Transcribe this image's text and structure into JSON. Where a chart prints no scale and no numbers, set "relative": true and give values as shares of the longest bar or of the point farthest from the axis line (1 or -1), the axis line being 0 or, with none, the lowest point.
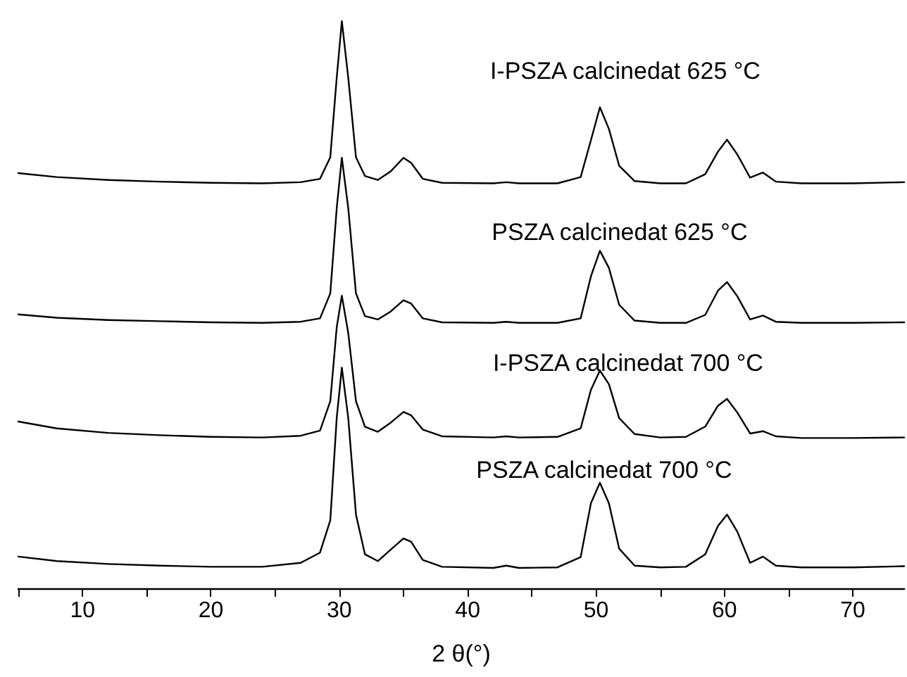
{
  "chart_data": {
    "type": "line",
    "relative": true,
    "xlabel": "2 θ(°)",
    "xlim": [
      5,
      74
    ],
    "xticks": [
      {
        "value": 5,
        "label": null
      },
      10,
      {
        "value": 15,
        "label": null
      },
      20,
      {
        "value": 25,
        "label": null
      },
      30,
      {
        "value": 35,
        "label": null
      },
      40,
      {
        "value": 45,
        "label": null
      },
      50,
      {
        "value": 55,
        "label": null
      },
      60,
      {
        "value": 65,
        "label": null
      },
      70
    ],
    "x": [
      5,
      8,
      12,
      16,
      20,
      24,
      27,
      28.5,
      29.3,
      29.8,
      30.2,
      30.7,
      31.3,
      32,
      33,
      34,
      35,
      35.6,
      36.5,
      38,
      42,
      43,
      44,
      47,
      48.8,
      49.6,
      50.3,
      51,
      51.8,
      53,
      55,
      57,
      58.5,
      59.5,
      60.2,
      61,
      62,
      63,
      64,
      66,
      70,
      74
    ],
    "legend": false,
    "grid": false,
    "marker": "none",
    "line_style": "solid",
    "tick_labels": "x",
    "series": [
      {
        "name": "I-PSZA calcinedat 625 °C",
        "color": "#000000",
        "values": [
          0.732,
          0.725,
          0.72,
          0.717,
          0.715,
          0.714,
          0.716,
          0.722,
          0.76,
          0.9,
          1.0,
          0.9,
          0.76,
          0.727,
          0.72,
          0.735,
          0.759,
          0.75,
          0.722,
          0.715,
          0.714,
          0.716,
          0.714,
          0.714,
          0.725,
          0.79,
          0.848,
          0.81,
          0.745,
          0.718,
          0.714,
          0.714,
          0.73,
          0.77,
          0.791,
          0.765,
          0.724,
          0.733,
          0.717,
          0.714,
          0.714,
          0.716
        ]
      },
      {
        "name": "PSZA calcinedat 625 °C",
        "color": "#000000",
        "values": [
          0.483,
          0.477,
          0.473,
          0.471,
          0.469,
          0.468,
          0.47,
          0.476,
          0.52,
          0.67,
          0.759,
          0.67,
          0.52,
          0.48,
          0.474,
          0.488,
          0.508,
          0.502,
          0.476,
          0.469,
          0.468,
          0.47,
          0.468,
          0.468,
          0.476,
          0.55,
          0.595,
          0.565,
          0.5,
          0.472,
          0.468,
          0.468,
          0.482,
          0.525,
          0.54,
          0.515,
          0.474,
          0.481,
          0.47,
          0.468,
          0.468,
          0.469
        ]
      },
      {
        "name": "I-PSZA calcinedat 700 °C",
        "color": "#000000",
        "values": [
          0.294,
          0.282,
          0.274,
          0.27,
          0.267,
          0.266,
          0.269,
          0.278,
          0.33,
          0.46,
          0.516,
          0.45,
          0.33,
          0.285,
          0.276,
          0.292,
          0.311,
          0.305,
          0.28,
          0.268,
          0.266,
          0.268,
          0.266,
          0.267,
          0.282,
          0.35,
          0.384,
          0.36,
          0.3,
          0.272,
          0.266,
          0.267,
          0.285,
          0.322,
          0.334,
          0.31,
          0.273,
          0.277,
          0.268,
          0.265,
          0.265,
          0.266
        ]
      },
      {
        "name": "PSZA calcinedat 700 °C",
        "color": "#000000",
        "values": [
          0.056,
          0.048,
          0.043,
          0.04,
          0.038,
          0.038,
          0.045,
          0.063,
          0.12,
          0.3,
          0.389,
          0.3,
          0.13,
          0.06,
          0.048,
          0.068,
          0.088,
          0.082,
          0.05,
          0.038,
          0.036,
          0.04,
          0.036,
          0.037,
          0.055,
          0.15,
          0.186,
          0.15,
          0.07,
          0.04,
          0.037,
          0.038,
          0.06,
          0.11,
          0.13,
          0.1,
          0.045,
          0.056,
          0.04,
          0.037,
          0.037,
          0.039
        ]
      }
    ]
  }
}
